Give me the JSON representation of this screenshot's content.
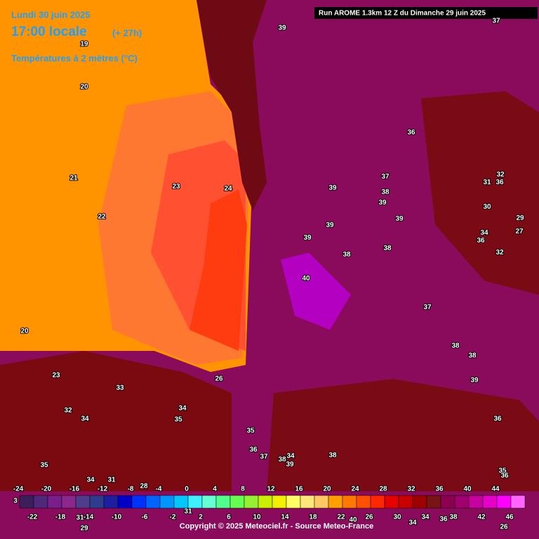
{
  "header": {
    "date": "Lundi 30 juin 2025",
    "time": "17:00 locale",
    "lead": "(+ 27h)",
    "field": "Températures à 2 mètres (°C)",
    "run": "Run AROME 1.3km 12 Z du Dimanche 29 juin 2025"
  },
  "footer": {
    "copyright": "Copyright © 2025 Meteociel.fr - Source Meteo-France"
  },
  "map_labels": [
    39,
    37,
    19,
    20,
    36,
    21,
    37,
    39,
    38,
    32,
    31,
    36,
    23,
    24,
    39,
    30,
    22,
    39,
    39,
    29,
    34,
    36,
    27,
    39,
    38,
    38,
    32,
    40,
    37,
    20,
    38,
    38,
    39,
    26,
    33,
    23,
    32,
    34,
    34,
    35,
    36,
    35,
    36,
    37,
    38,
    39,
    38,
    34,
    35,
    34,
    31,
    35,
    36,
    28,
    31,
    31,
    29,
    40,
    34,
    36,
    26
  ],
  "scale": {
    "min_label": 3,
    "top_labels": [
      -24,
      -20,
      -16,
      -12,
      -8,
      -4,
      0,
      4,
      8,
      12,
      16,
      20,
      24,
      28,
      32,
      36,
      40,
      44
    ],
    "bottom_labels": [
      -22,
      -18,
      -14,
      -10,
      -6,
      -2,
      2,
      6,
      10,
      14,
      18,
      22,
      26,
      30,
      34,
      38,
      42,
      46
    ],
    "colors": [
      "#3c1e5a",
      "#50287a",
      "#7a1e8c",
      "#8c288c",
      "#503c8c",
      "#2d3c8c",
      "#1e1ea0",
      "#0000c8",
      "#0032ff",
      "#0064ff",
      "#0096ff",
      "#00c8ff",
      "#3cf0ff",
      "#64ffd2",
      "#50ff8c",
      "#64ff50",
      "#96f032",
      "#c8f000",
      "#f0f000",
      "#ffff64",
      "#ffe678",
      "#ffc864",
      "#ffa000",
      "#ff7800",
      "#ff5000",
      "#ff2800",
      "#e60000",
      "#c80000",
      "#a00000",
      "#781414",
      "#8c0050",
      "#a0006e",
      "#c800a0",
      "#e600c8",
      "#ff00ff",
      "#ff64ff"
    ]
  }
}
